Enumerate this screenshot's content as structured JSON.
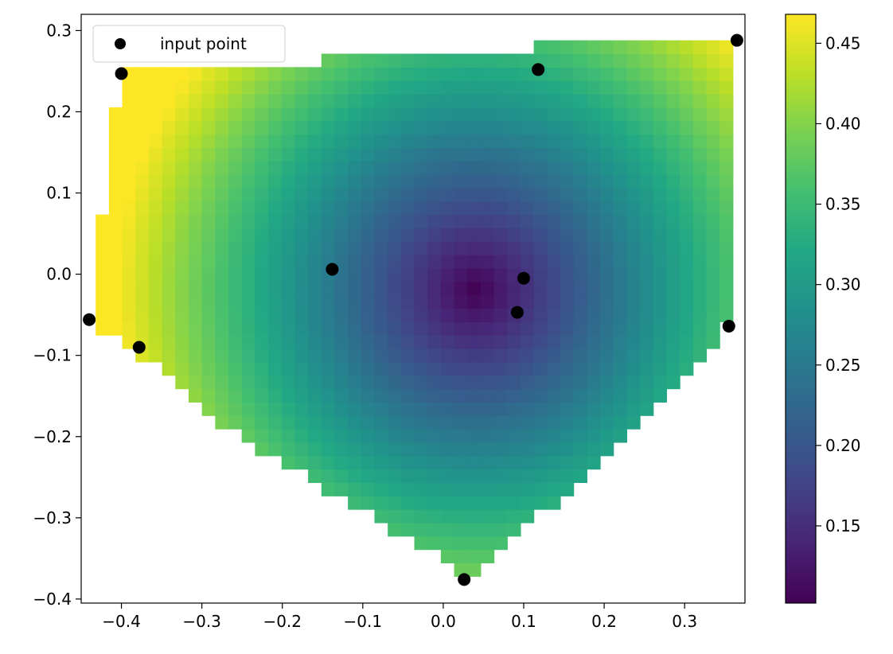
{
  "chart_data": {
    "type": "heatmap",
    "title": "",
    "xlabel": "",
    "ylabel": "",
    "xlim": [
      -0.45,
      0.375
    ],
    "ylim": [
      -0.405,
      0.32
    ],
    "x_ticks": [
      -0.4,
      -0.3,
      -0.2,
      -0.1,
      0.0,
      0.1,
      0.2,
      0.3
    ],
    "x_tick_labels": [
      "−0.4",
      "−0.3",
      "−0.2",
      "−0.1",
      "0.0",
      "0.1",
      "0.2",
      "0.3"
    ],
    "y_ticks": [
      -0.4,
      -0.3,
      -0.2,
      -0.1,
      0.0,
      0.1,
      0.2,
      0.3
    ],
    "y_tick_labels": [
      "−0.4",
      "−0.3",
      "−0.2",
      "−0.1",
      "0.0",
      "0.1",
      "0.2",
      "0.3"
    ],
    "colormap": "viridis",
    "color_range": [
      0.102,
      0.468
    ],
    "colorbar_ticks": [
      0.15,
      0.2,
      0.25,
      0.3,
      0.35,
      0.4,
      0.45
    ],
    "colorbar_tick_labels": [
      "0.15",
      "0.20",
      "0.25",
      "0.30",
      "0.35",
      "0.40",
      "0.45"
    ],
    "grid": false,
    "legend": {
      "placement": "upper-left",
      "entries": [
        {
          "label": "input point",
          "marker": "circle",
          "color": "#000000"
        }
      ]
    },
    "input_points": [
      {
        "x": -0.44,
        "y": -0.056
      },
      {
        "x": -0.4,
        "y": 0.247
      },
      {
        "x": -0.378,
        "y": -0.09
      },
      {
        "x": -0.138,
        "y": 0.006
      },
      {
        "x": 0.026,
        "y": -0.376
      },
      {
        "x": 0.092,
        "y": -0.047
      },
      {
        "x": 0.1,
        "y": -0.005
      },
      {
        "x": 0.118,
        "y": 0.252
      },
      {
        "x": 0.355,
        "y": -0.064
      },
      {
        "x": 0.365,
        "y": 0.288
      }
    ],
    "surface": {
      "cell_size": 0.0165,
      "x_range": [
        -0.432,
        0.355
      ],
      "minimum": {
        "x": 0.04,
        "y": -0.02,
        "value": 0.102
      },
      "top_boundary": [
        {
          "x_from": -0.432,
          "x_to": -0.415,
          "y": 0.078
        },
        {
          "x_from": -0.415,
          "x_to": -0.399,
          "y": 0.2
        },
        {
          "x_from": -0.399,
          "x_to": -0.148,
          "y": 0.253
        },
        {
          "x_from": -0.148,
          "x_to": 0.11,
          "y": 0.268
        },
        {
          "x_from": 0.11,
          "x_to": 0.355,
          "y": 0.28
        }
      ],
      "bottom_boundary": [
        {
          "x": -0.432,
          "y": -0.068
        },
        {
          "x": -0.4,
          "y": -0.083
        },
        {
          "x": -0.35,
          "y": -0.122
        },
        {
          "x": -0.3,
          "y": -0.168
        },
        {
          "x": -0.2,
          "y": -0.232
        },
        {
          "x": -0.1,
          "y": -0.292
        },
        {
          "x": 0.0,
          "y": -0.352
        },
        {
          "x": 0.03,
          "y": -0.372
        },
        {
          "x": 0.06,
          "y": -0.352
        },
        {
          "x": 0.15,
          "y": -0.27
        },
        {
          "x": 0.25,
          "y": -0.17
        },
        {
          "x": 0.3,
          "y": -0.132
        },
        {
          "x": 0.355,
          "y": -0.06
        }
      ]
    }
  }
}
